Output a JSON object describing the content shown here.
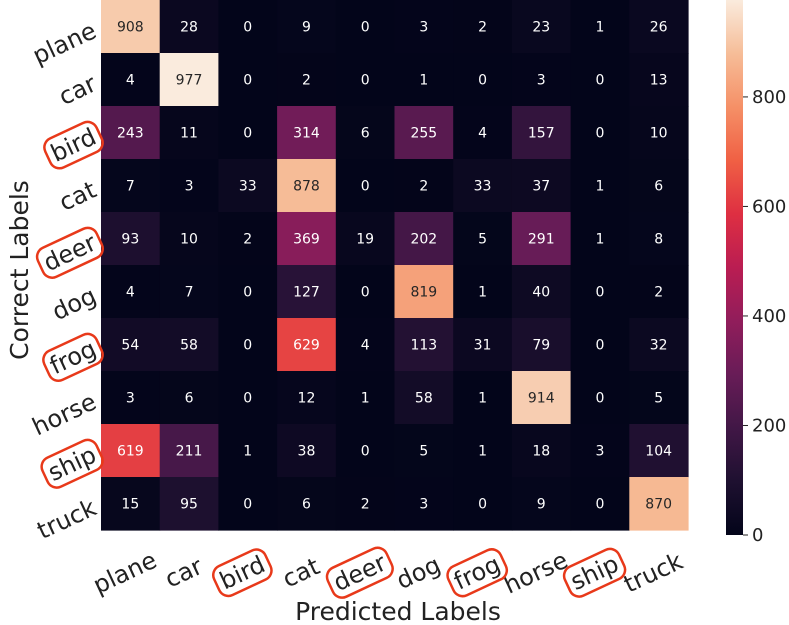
{
  "chart_data": {
    "type": "heatmap",
    "title": "",
    "xlabel": "Predicted Labels",
    "ylabel": "Correct Labels",
    "x_categories": [
      "plane",
      "car",
      "bird",
      "cat",
      "deer",
      "dog",
      "frog",
      "horse",
      "ship",
      "truck"
    ],
    "y_categories": [
      "plane",
      "car",
      "bird",
      "cat",
      "deer",
      "dog",
      "frog",
      "horse",
      "ship",
      "truck"
    ],
    "highlighted_labels": [
      "bird",
      "deer",
      "frog",
      "ship"
    ],
    "values": [
      [
        908,
        28,
        0,
        9,
        0,
        3,
        2,
        23,
        1,
        26
      ],
      [
        4,
        977,
        0,
        2,
        0,
        1,
        0,
        3,
        0,
        13
      ],
      [
        243,
        11,
        0,
        314,
        6,
        255,
        4,
        157,
        0,
        10
      ],
      [
        7,
        3,
        33,
        878,
        0,
        2,
        33,
        37,
        1,
        6
      ],
      [
        93,
        10,
        2,
        369,
        19,
        202,
        5,
        291,
        1,
        8
      ],
      [
        4,
        7,
        0,
        127,
        0,
        819,
        1,
        40,
        0,
        2
      ],
      [
        54,
        58,
        0,
        629,
        4,
        113,
        31,
        79,
        0,
        32
      ],
      [
        3,
        6,
        0,
        12,
        1,
        58,
        1,
        914,
        0,
        5
      ],
      [
        619,
        211,
        1,
        38,
        0,
        5,
        1,
        18,
        3,
        104
      ],
      [
        15,
        95,
        0,
        6,
        2,
        3,
        0,
        9,
        0,
        870
      ]
    ],
    "colorbar": {
      "min": 0,
      "max": 977,
      "ticks": [
        0,
        200,
        400,
        600,
        800
      ],
      "colormap": "rocket"
    },
    "highlight_color": "#e8391a"
  }
}
